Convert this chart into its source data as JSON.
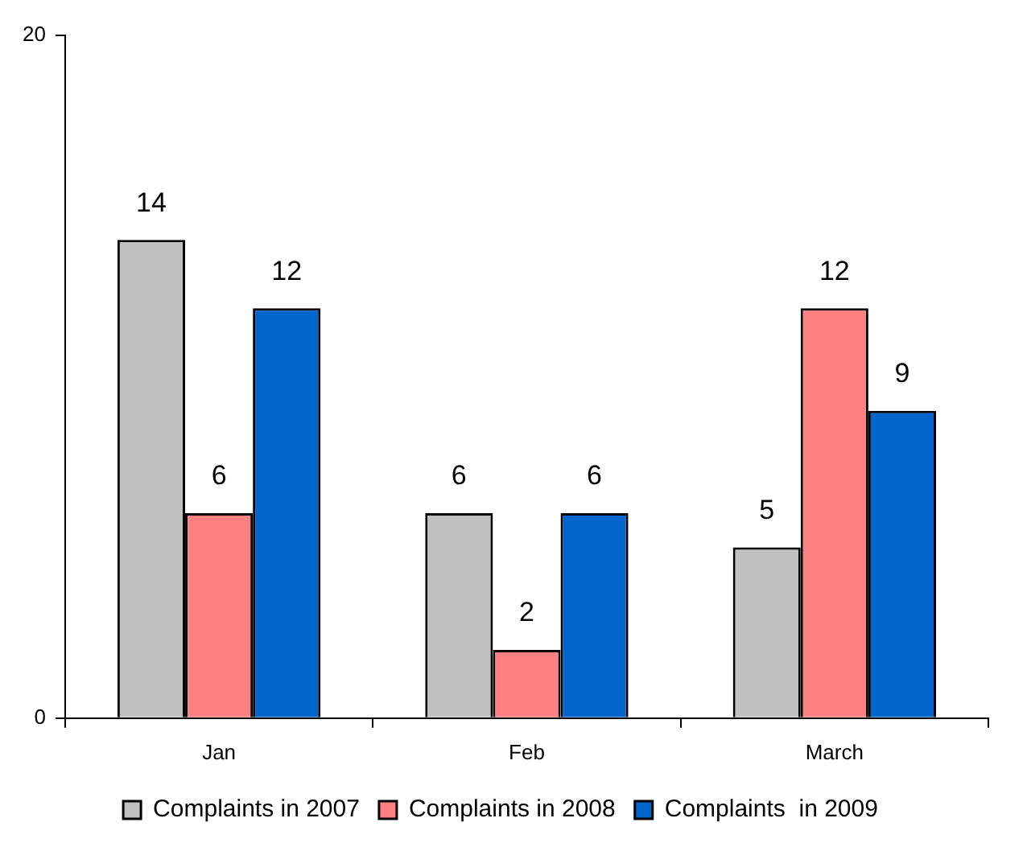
{
  "chart_data": {
    "type": "bar",
    "categories": [
      "Jan",
      "Feb",
      "March"
    ],
    "series": [
      {
        "name": "Complaints in 2007",
        "color": "#c0c0c0",
        "values": [
          14,
          6,
          5
        ]
      },
      {
        "name": "Complaints in 2008",
        "color": "#ff8080",
        "values": [
          6,
          2,
          12
        ]
      },
      {
        "name": "Complaints  in 2009",
        "color": "#0066cc",
        "values": [
          12,
          6,
          9
        ]
      }
    ],
    "ylim": [
      0,
      20
    ],
    "yticks": [
      0,
      20
    ],
    "grid": false,
    "legend": "bottom",
    "data_labels": true
  }
}
